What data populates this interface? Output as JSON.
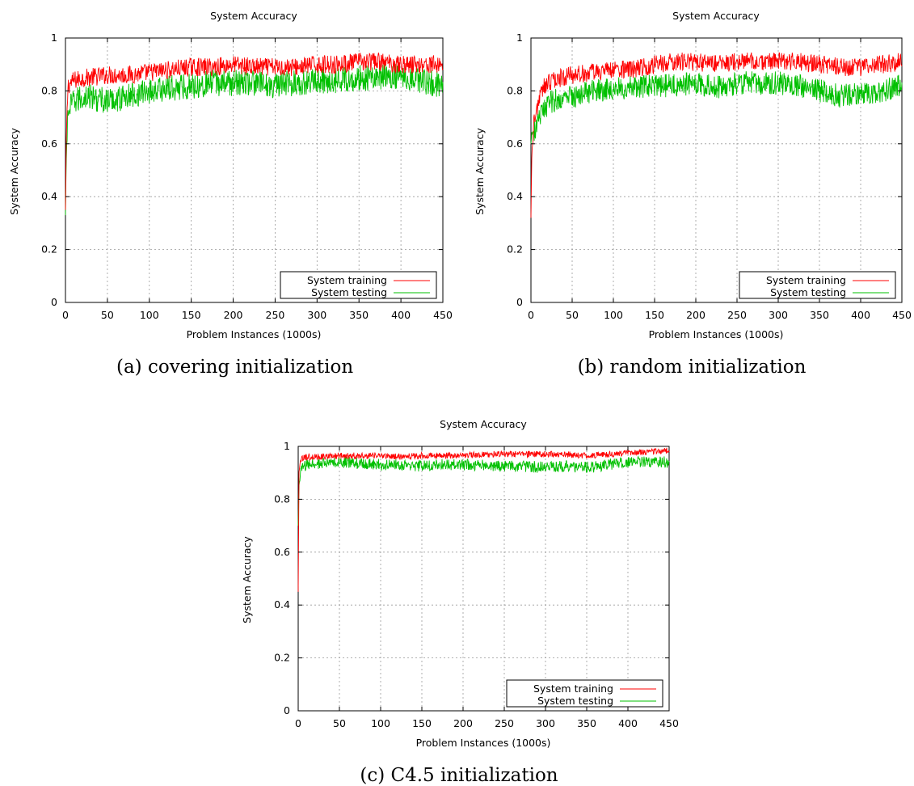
{
  "chart_data": [
    {
      "type": "line",
      "caption": "(a) covering initialization",
      "title": "System Accuracy",
      "xlabel": "Problem Instances (1000s)",
      "ylabel": "System Accuracy",
      "xlim": [
        0,
        450
      ],
      "ylim": [
        0,
        1
      ],
      "xticks": [
        0,
        50,
        100,
        150,
        200,
        250,
        300,
        350,
        400,
        450
      ],
      "yticks": [
        0,
        0.2,
        0.4,
        0.6,
        0.8,
        1
      ],
      "ytick_labels": [
        "0",
        "0.2",
        "0.4",
        "0.6",
        "0.8",
        "1"
      ],
      "grid": true,
      "legend_position": "bottom-right",
      "series": [
        {
          "name": "System training",
          "color": "#ff0000",
          "x": [
            0,
            1,
            3,
            10,
            25,
            50,
            75,
            100,
            125,
            150,
            175,
            200,
            225,
            250,
            275,
            300,
            325,
            350,
            375,
            400,
            425,
            450
          ],
          "y": [
            0.35,
            0.62,
            0.82,
            0.84,
            0.85,
            0.86,
            0.86,
            0.87,
            0.88,
            0.89,
            0.89,
            0.9,
            0.89,
            0.89,
            0.89,
            0.9,
            0.9,
            0.91,
            0.91,
            0.9,
            0.9,
            0.9
          ]
        },
        {
          "name": "System testing",
          "color": "#00c000",
          "x": [
            0,
            1,
            3,
            10,
            25,
            50,
            75,
            100,
            125,
            150,
            175,
            200,
            225,
            250,
            275,
            300,
            325,
            350,
            375,
            400,
            425,
            450
          ],
          "y": [
            0.33,
            0.55,
            0.72,
            0.76,
            0.78,
            0.76,
            0.78,
            0.8,
            0.81,
            0.82,
            0.83,
            0.83,
            0.83,
            0.82,
            0.83,
            0.84,
            0.84,
            0.85,
            0.85,
            0.86,
            0.84,
            0.82
          ]
        }
      ]
    },
    {
      "type": "line",
      "caption": "(b) random initialization",
      "title": "System Accuracy",
      "xlabel": "Problem Instances (1000s)",
      "ylabel": "System Accuracy",
      "xlim": [
        0,
        450
      ],
      "ylim": [
        0,
        1
      ],
      "xticks": [
        0,
        50,
        100,
        150,
        200,
        250,
        300,
        350,
        400,
        450
      ],
      "yticks": [
        0,
        0.2,
        0.4,
        0.6,
        0.8,
        1
      ],
      "ytick_labels": [
        "0",
        "0.2",
        "0.4",
        "0.6",
        "0.8",
        "1"
      ],
      "grid": true,
      "legend_position": "bottom-right",
      "series": [
        {
          "name": "System training",
          "color": "#ff0000",
          "x": [
            0,
            1,
            3,
            6,
            10,
            15,
            25,
            50,
            75,
            100,
            125,
            150,
            175,
            200,
            225,
            250,
            275,
            300,
            325,
            350,
            375,
            400,
            425,
            450
          ],
          "y": [
            0.32,
            0.55,
            0.66,
            0.72,
            0.77,
            0.81,
            0.84,
            0.86,
            0.87,
            0.88,
            0.88,
            0.9,
            0.91,
            0.91,
            0.9,
            0.91,
            0.91,
            0.91,
            0.91,
            0.9,
            0.89,
            0.89,
            0.9,
            0.91
          ]
        },
        {
          "name": "System testing",
          "color": "#00c000",
          "x": [
            0,
            1,
            3,
            6,
            10,
            15,
            25,
            50,
            75,
            100,
            125,
            150,
            175,
            200,
            225,
            250,
            275,
            300,
            325,
            350,
            375,
            400,
            425,
            450
          ],
          "y": [
            0.6,
            0.63,
            0.64,
            0.66,
            0.69,
            0.73,
            0.76,
            0.78,
            0.8,
            0.81,
            0.81,
            0.82,
            0.82,
            0.83,
            0.81,
            0.83,
            0.83,
            0.83,
            0.82,
            0.8,
            0.78,
            0.79,
            0.8,
            0.82
          ]
        }
      ]
    },
    {
      "type": "line",
      "caption": "(c) C4.5 initialization",
      "title": "System Accuracy",
      "xlabel": "Problem Instances (1000s)",
      "ylabel": "System Accuracy",
      "xlim": [
        0,
        450
      ],
      "ylim": [
        0,
        1
      ],
      "xticks": [
        0,
        50,
        100,
        150,
        200,
        250,
        300,
        350,
        400,
        450
      ],
      "yticks": [
        0,
        0.2,
        0.4,
        0.6,
        0.8,
        1
      ],
      "ytick_labels": [
        "0",
        "0.2",
        "0.4",
        "0.6",
        "0.8",
        "1"
      ],
      "grid": true,
      "legend_position": "bottom-right",
      "series": [
        {
          "name": "System training",
          "color": "#ff0000",
          "x": [
            0,
            1,
            3,
            10,
            25,
            50,
            75,
            100,
            125,
            150,
            175,
            200,
            225,
            250,
            275,
            300,
            325,
            350,
            375,
            400,
            425,
            450
          ],
          "y": [
            0.45,
            0.9,
            0.95,
            0.96,
            0.96,
            0.965,
            0.965,
            0.965,
            0.96,
            0.965,
            0.965,
            0.965,
            0.97,
            0.97,
            0.97,
            0.97,
            0.97,
            0.965,
            0.97,
            0.975,
            0.98,
            0.985
          ]
        },
        {
          "name": "System testing",
          "color": "#00c000",
          "x": [
            0,
            1,
            3,
            10,
            25,
            50,
            75,
            100,
            125,
            150,
            175,
            200,
            225,
            250,
            275,
            300,
            325,
            350,
            375,
            400,
            425,
            450
          ],
          "y": [
            0.7,
            0.85,
            0.91,
            0.93,
            0.935,
            0.94,
            0.935,
            0.93,
            0.93,
            0.925,
            0.93,
            0.93,
            0.93,
            0.925,
            0.925,
            0.92,
            0.925,
            0.92,
            0.93,
            0.94,
            0.94,
            0.94
          ]
        }
      ]
    }
  ]
}
